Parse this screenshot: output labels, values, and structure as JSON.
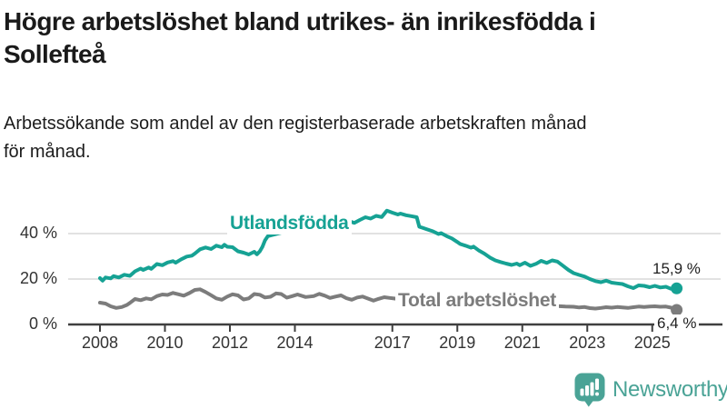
{
  "header": {
    "title_line1": "Högre arbetslöshet bland utrikes- än inrikesfödda i",
    "title_line2": "Sollefteå",
    "subtitle_line1": "Arbetssökande som andel av den registerbaserade arbetskraften månad",
    "subtitle_line2": "för månad."
  },
  "branding": {
    "logo_text": "Newsworthy",
    "logo_color": "#4aa396",
    "logo_icon": "bar-chart-speech-bubble-icon"
  },
  "colors": {
    "background": "#ffffff",
    "title": "#1a1a1a",
    "subtitle": "#1c1c1c",
    "axis": "#3f3f3f",
    "gridline": "#d9d9d9",
    "tick_label": "#333333",
    "value_label": "#1f1f1f"
  },
  "chart_data": {
    "type": "line",
    "unit": "%",
    "grid": "horizontal",
    "legend_position": "inline-labels",
    "x_range": [
      2007.0,
      2026.1
    ],
    "y_range": [
      0,
      52
    ],
    "y_ticks": [
      {
        "value": 0,
        "label": "0 %"
      },
      {
        "value": 20,
        "label": "20 %"
      },
      {
        "value": 40,
        "label": "40 %"
      }
    ],
    "x_ticks": [
      {
        "value": 2008,
        "label": "2008"
      },
      {
        "value": 2010,
        "label": "2010"
      },
      {
        "value": 2012,
        "label": "2012"
      },
      {
        "value": 2014,
        "label": "2014"
      },
      {
        "value": 2017,
        "label": "2017"
      },
      {
        "value": 2019,
        "label": "2019"
      },
      {
        "value": 2021,
        "label": "2021"
      },
      {
        "value": 2023,
        "label": "2023"
      },
      {
        "value": 2025,
        "label": "2025"
      }
    ],
    "series": [
      {
        "name": "Utlandsfödda",
        "color": "#16a294",
        "end_label": "15,9 %",
        "end_value": 15.9,
        "points": [
          [
            2008.0,
            20.4
          ],
          [
            2008.08,
            19.3
          ],
          [
            2008.17,
            20.7
          ],
          [
            2008.33,
            20.3
          ],
          [
            2008.42,
            21.3
          ],
          [
            2008.58,
            20.7
          ],
          [
            2008.75,
            21.9
          ],
          [
            2008.92,
            21.4
          ],
          [
            2009.08,
            23.4
          ],
          [
            2009.25,
            24.6
          ],
          [
            2009.33,
            24.0
          ],
          [
            2009.5,
            25.1
          ],
          [
            2009.58,
            24.5
          ],
          [
            2009.75,
            26.6
          ],
          [
            2009.92,
            26.1
          ],
          [
            2010.08,
            27.3
          ],
          [
            2010.25,
            27.9
          ],
          [
            2010.33,
            27.2
          ],
          [
            2010.5,
            28.7
          ],
          [
            2010.67,
            29.9
          ],
          [
            2010.83,
            30.3
          ],
          [
            2010.92,
            31.2
          ],
          [
            2011.08,
            33.1
          ],
          [
            2011.25,
            33.9
          ],
          [
            2011.42,
            33.2
          ],
          [
            2011.58,
            34.7
          ],
          [
            2011.75,
            34.0
          ],
          [
            2011.83,
            35.1
          ],
          [
            2011.92,
            34.2
          ],
          [
            2012.08,
            34.0
          ],
          [
            2012.25,
            32.2
          ],
          [
            2012.42,
            31.6
          ],
          [
            2012.58,
            30.8
          ],
          [
            2012.75,
            32.0
          ],
          [
            2012.83,
            30.9
          ],
          [
            2012.92,
            32.2
          ],
          [
            2013.0,
            34.2
          ],
          [
            2013.08,
            37.0
          ],
          [
            2013.17,
            38.9
          ],
          [
            2013.33,
            39.5
          ],
          [
            2013.58,
            40.4
          ],
          [
            2013.83,
            41.2
          ],
          [
            2014.08,
            41.9
          ],
          [
            2014.33,
            42.3
          ],
          [
            2014.58,
            42.7
          ],
          [
            2014.83,
            43.1
          ],
          [
            2015.08,
            43.6
          ],
          [
            2015.33,
            44.0
          ],
          [
            2015.5,
            44.4
          ],
          [
            2015.67,
            45.5
          ],
          [
            2015.83,
            44.7
          ],
          [
            2016.0,
            46.0
          ],
          [
            2016.17,
            47.2
          ],
          [
            2016.33,
            46.6
          ],
          [
            2016.5,
            47.8
          ],
          [
            2016.67,
            47.3
          ],
          [
            2016.83,
            50.1
          ],
          [
            2017.0,
            49.2
          ],
          [
            2017.17,
            48.4
          ],
          [
            2017.25,
            48.8
          ],
          [
            2017.42,
            48.1
          ],
          [
            2017.58,
            47.7
          ],
          [
            2017.75,
            47.2
          ],
          [
            2017.83,
            43.0
          ],
          [
            2017.92,
            42.6
          ],
          [
            2018.08,
            41.8
          ],
          [
            2018.25,
            41.0
          ],
          [
            2018.42,
            39.8
          ],
          [
            2018.5,
            40.2
          ],
          [
            2018.67,
            38.9
          ],
          [
            2018.83,
            37.9
          ],
          [
            2019.0,
            36.3
          ],
          [
            2019.08,
            35.5
          ],
          [
            2019.25,
            34.7
          ],
          [
            2019.42,
            33.8
          ],
          [
            2019.5,
            34.3
          ],
          [
            2019.67,
            32.5
          ],
          [
            2019.83,
            31.2
          ],
          [
            2020.0,
            29.5
          ],
          [
            2020.17,
            28.2
          ],
          [
            2020.33,
            27.5
          ],
          [
            2020.5,
            26.8
          ],
          [
            2020.67,
            26.2
          ],
          [
            2020.83,
            26.8
          ],
          [
            2020.92,
            26.1
          ],
          [
            2021.08,
            27.2
          ],
          [
            2021.25,
            25.8
          ],
          [
            2021.42,
            26.7
          ],
          [
            2021.58,
            28.0
          ],
          [
            2021.75,
            27.1
          ],
          [
            2021.92,
            28.2
          ],
          [
            2022.08,
            27.7
          ],
          [
            2022.25,
            25.9
          ],
          [
            2022.42,
            24.0
          ],
          [
            2022.58,
            22.6
          ],
          [
            2022.75,
            21.8
          ],
          [
            2022.92,
            21.1
          ],
          [
            2023.08,
            20.0
          ],
          [
            2023.25,
            19.1
          ],
          [
            2023.42,
            18.6
          ],
          [
            2023.58,
            19.3
          ],
          [
            2023.75,
            18.4
          ],
          [
            2023.92,
            18.1
          ],
          [
            2024.08,
            17.8
          ],
          [
            2024.25,
            16.8
          ],
          [
            2024.42,
            16.0
          ],
          [
            2024.58,
            17.2
          ],
          [
            2024.75,
            17.0
          ],
          [
            2024.92,
            16.4
          ],
          [
            2025.08,
            17.0
          ],
          [
            2025.25,
            16.3
          ],
          [
            2025.42,
            16.6
          ],
          [
            2025.58,
            15.7
          ],
          [
            2025.75,
            15.9
          ]
        ]
      },
      {
        "name": "Total arbetslöshet",
        "color": "#7c7c7c",
        "end_label": "6,4 %",
        "end_value": 6.4,
        "points": [
          [
            2008.0,
            9.6
          ],
          [
            2008.17,
            9.2
          ],
          [
            2008.33,
            8.0
          ],
          [
            2008.5,
            7.3
          ],
          [
            2008.67,
            7.7
          ],
          [
            2008.83,
            8.6
          ],
          [
            2008.92,
            9.5
          ],
          [
            2009.08,
            11.2
          ],
          [
            2009.25,
            10.7
          ],
          [
            2009.42,
            11.5
          ],
          [
            2009.58,
            11.1
          ],
          [
            2009.75,
            12.5
          ],
          [
            2009.92,
            13.2
          ],
          [
            2010.08,
            13.0
          ],
          [
            2010.25,
            13.9
          ],
          [
            2010.42,
            13.3
          ],
          [
            2010.58,
            12.7
          ],
          [
            2010.75,
            13.8
          ],
          [
            2010.92,
            15.2
          ],
          [
            2011.08,
            15.5
          ],
          [
            2011.25,
            14.3
          ],
          [
            2011.42,
            12.9
          ],
          [
            2011.58,
            11.5
          ],
          [
            2011.75,
            10.9
          ],
          [
            2011.92,
            12.3
          ],
          [
            2012.08,
            13.3
          ],
          [
            2012.25,
            12.8
          ],
          [
            2012.42,
            11.0
          ],
          [
            2012.58,
            11.5
          ],
          [
            2012.75,
            13.4
          ],
          [
            2012.92,
            13.1
          ],
          [
            2013.08,
            11.9
          ],
          [
            2013.25,
            12.2
          ],
          [
            2013.42,
            13.7
          ],
          [
            2013.58,
            13.4
          ],
          [
            2013.75,
            11.8
          ],
          [
            2013.92,
            12.5
          ],
          [
            2014.08,
            13.2
          ],
          [
            2014.33,
            12.1
          ],
          [
            2014.58,
            12.5
          ],
          [
            2014.75,
            13.5
          ],
          [
            2014.92,
            12.7
          ],
          [
            2015.08,
            11.7
          ],
          [
            2015.25,
            12.3
          ],
          [
            2015.42,
            12.8
          ],
          [
            2015.58,
            11.6
          ],
          [
            2015.75,
            10.9
          ],
          [
            2015.92,
            11.9
          ],
          [
            2016.08,
            12.3
          ],
          [
            2016.25,
            11.4
          ],
          [
            2016.42,
            10.5
          ],
          [
            2016.58,
            11.3
          ],
          [
            2016.75,
            12.0
          ],
          [
            2016.92,
            11.7
          ],
          [
            2017.08,
            11.4
          ],
          [
            2017.33,
            10.9
          ],
          [
            2017.58,
            10.4
          ],
          [
            2017.83,
            10.1
          ],
          [
            2018.08,
            10.3
          ],
          [
            2018.33,
            9.6
          ],
          [
            2018.58,
            9.1
          ],
          [
            2018.83,
            9.3
          ],
          [
            2019.08,
            9.0
          ],
          [
            2019.33,
            8.6
          ],
          [
            2019.58,
            8.3
          ],
          [
            2019.83,
            8.6
          ],
          [
            2020.08,
            9.3
          ],
          [
            2020.33,
            10.2
          ],
          [
            2020.58,
            9.9
          ],
          [
            2020.83,
            9.6
          ],
          [
            2021.08,
            9.2
          ],
          [
            2021.33,
            8.8
          ],
          [
            2021.58,
            8.5
          ],
          [
            2021.83,
            8.3
          ],
          [
            2022.08,
            8.1
          ],
          [
            2022.33,
            7.9
          ],
          [
            2022.58,
            7.8
          ],
          [
            2022.75,
            7.5
          ],
          [
            2022.92,
            7.7
          ],
          [
            2023.08,
            7.2
          ],
          [
            2023.25,
            7.0
          ],
          [
            2023.42,
            7.3
          ],
          [
            2023.58,
            7.6
          ],
          [
            2023.75,
            7.4
          ],
          [
            2023.92,
            7.7
          ],
          [
            2024.08,
            7.5
          ],
          [
            2024.25,
            7.3
          ],
          [
            2024.42,
            7.6
          ],
          [
            2024.58,
            7.9
          ],
          [
            2024.75,
            7.7
          ],
          [
            2024.92,
            7.9
          ],
          [
            2025.08,
            8.0
          ],
          [
            2025.25,
            7.8
          ],
          [
            2025.42,
            7.9
          ],
          [
            2025.58,
            7.4
          ],
          [
            2025.75,
            6.4
          ]
        ]
      }
    ]
  }
}
